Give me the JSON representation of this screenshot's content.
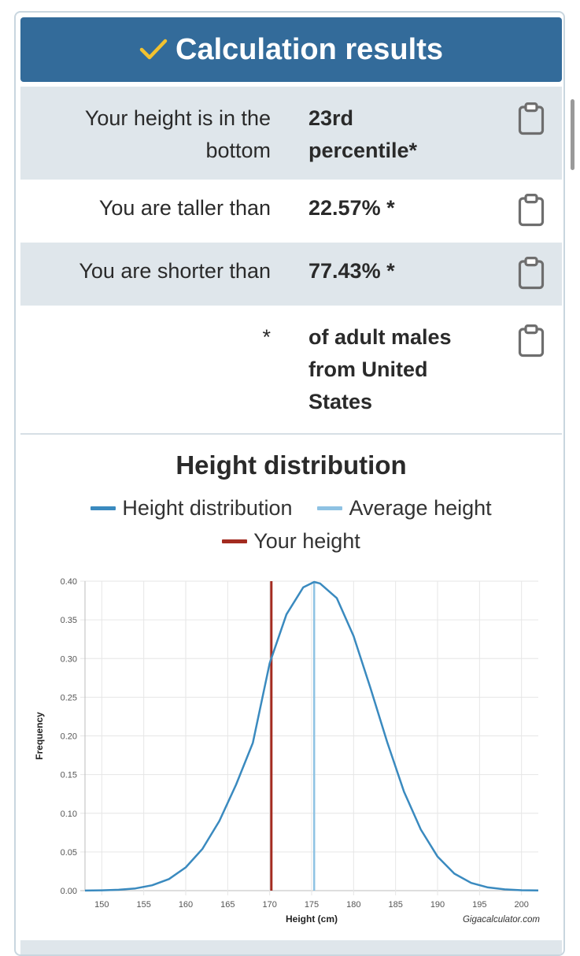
{
  "header": {
    "title": "Calculation results",
    "check_color": "#f2c230",
    "bg_color": "#336b9a"
  },
  "results": [
    {
      "label_lines": [
        "Your height is in the",
        "bottom"
      ],
      "value_lines": [
        "23rd",
        "percentile*"
      ]
    },
    {
      "label_lines": [
        "You are taller than"
      ],
      "value_lines": [
        "22.57% *"
      ]
    },
    {
      "label_lines": [
        "You are shorter than"
      ],
      "value_lines": [
        "77.43% *"
      ]
    },
    {
      "label_lines": [
        "*"
      ],
      "value_lines": [
        "of adult males",
        "from United",
        "States"
      ]
    }
  ],
  "icons": {
    "copy": "clipboard-icon",
    "check": "check-icon"
  },
  "chart": {
    "title": "Height distribution",
    "legend": [
      {
        "label": "Height distribution",
        "color": "#3a8abf"
      },
      {
        "label": "Average height",
        "color": "#8ec2e3"
      },
      {
        "label": "Your height",
        "color": "#a32b20"
      }
    ],
    "watermark": "Gigacalculator.com"
  },
  "chart_data": {
    "type": "line",
    "title": "Height distribution",
    "xlabel": "Height (cm)",
    "ylabel": "Frequency",
    "x_range": [
      148,
      202
    ],
    "ylim": [
      0,
      0.4
    ],
    "x_ticks": [
      150,
      155,
      160,
      165,
      170,
      175,
      180,
      185,
      190,
      195,
      200
    ],
    "y_ticks": [
      0,
      0.05,
      0.1,
      0.15,
      0.2,
      0.25,
      0.3,
      0.35,
      0.4
    ],
    "y_tick_labels": [
      "0.00",
      "0.05",
      "0.10",
      "0.15",
      "0.20",
      "0.25",
      "0.30",
      "0.35",
      "0.40"
    ],
    "grid": true,
    "series": [
      {
        "name": "Height distribution",
        "color": "#3a8abf",
        "x": [
          148,
          150,
          152,
          154,
          156,
          158,
          160,
          162,
          164,
          166,
          168,
          170,
          172,
          174,
          175.3,
          176,
          178,
          180,
          182,
          184,
          186,
          188,
          190,
          192,
          194,
          196,
          198,
          200,
          202
        ],
        "y": [
          0.0001,
          0.0004,
          0.0011,
          0.0029,
          0.0069,
          0.015,
          0.03,
          0.054,
          0.09,
          0.137,
          0.191,
          0.294,
          0.357,
          0.392,
          0.399,
          0.397,
          0.378,
          0.329,
          0.262,
          0.192,
          0.128,
          0.079,
          0.044,
          0.022,
          0.01,
          0.0042,
          0.0016,
          0.0005,
          0.0002
        ]
      }
    ],
    "vertical_lines": [
      {
        "name": "Average height",
        "x": 175.3,
        "color": "#8ec2e3"
      },
      {
        "name": "Your height",
        "x": 170.2,
        "color": "#a32b20"
      }
    ]
  }
}
